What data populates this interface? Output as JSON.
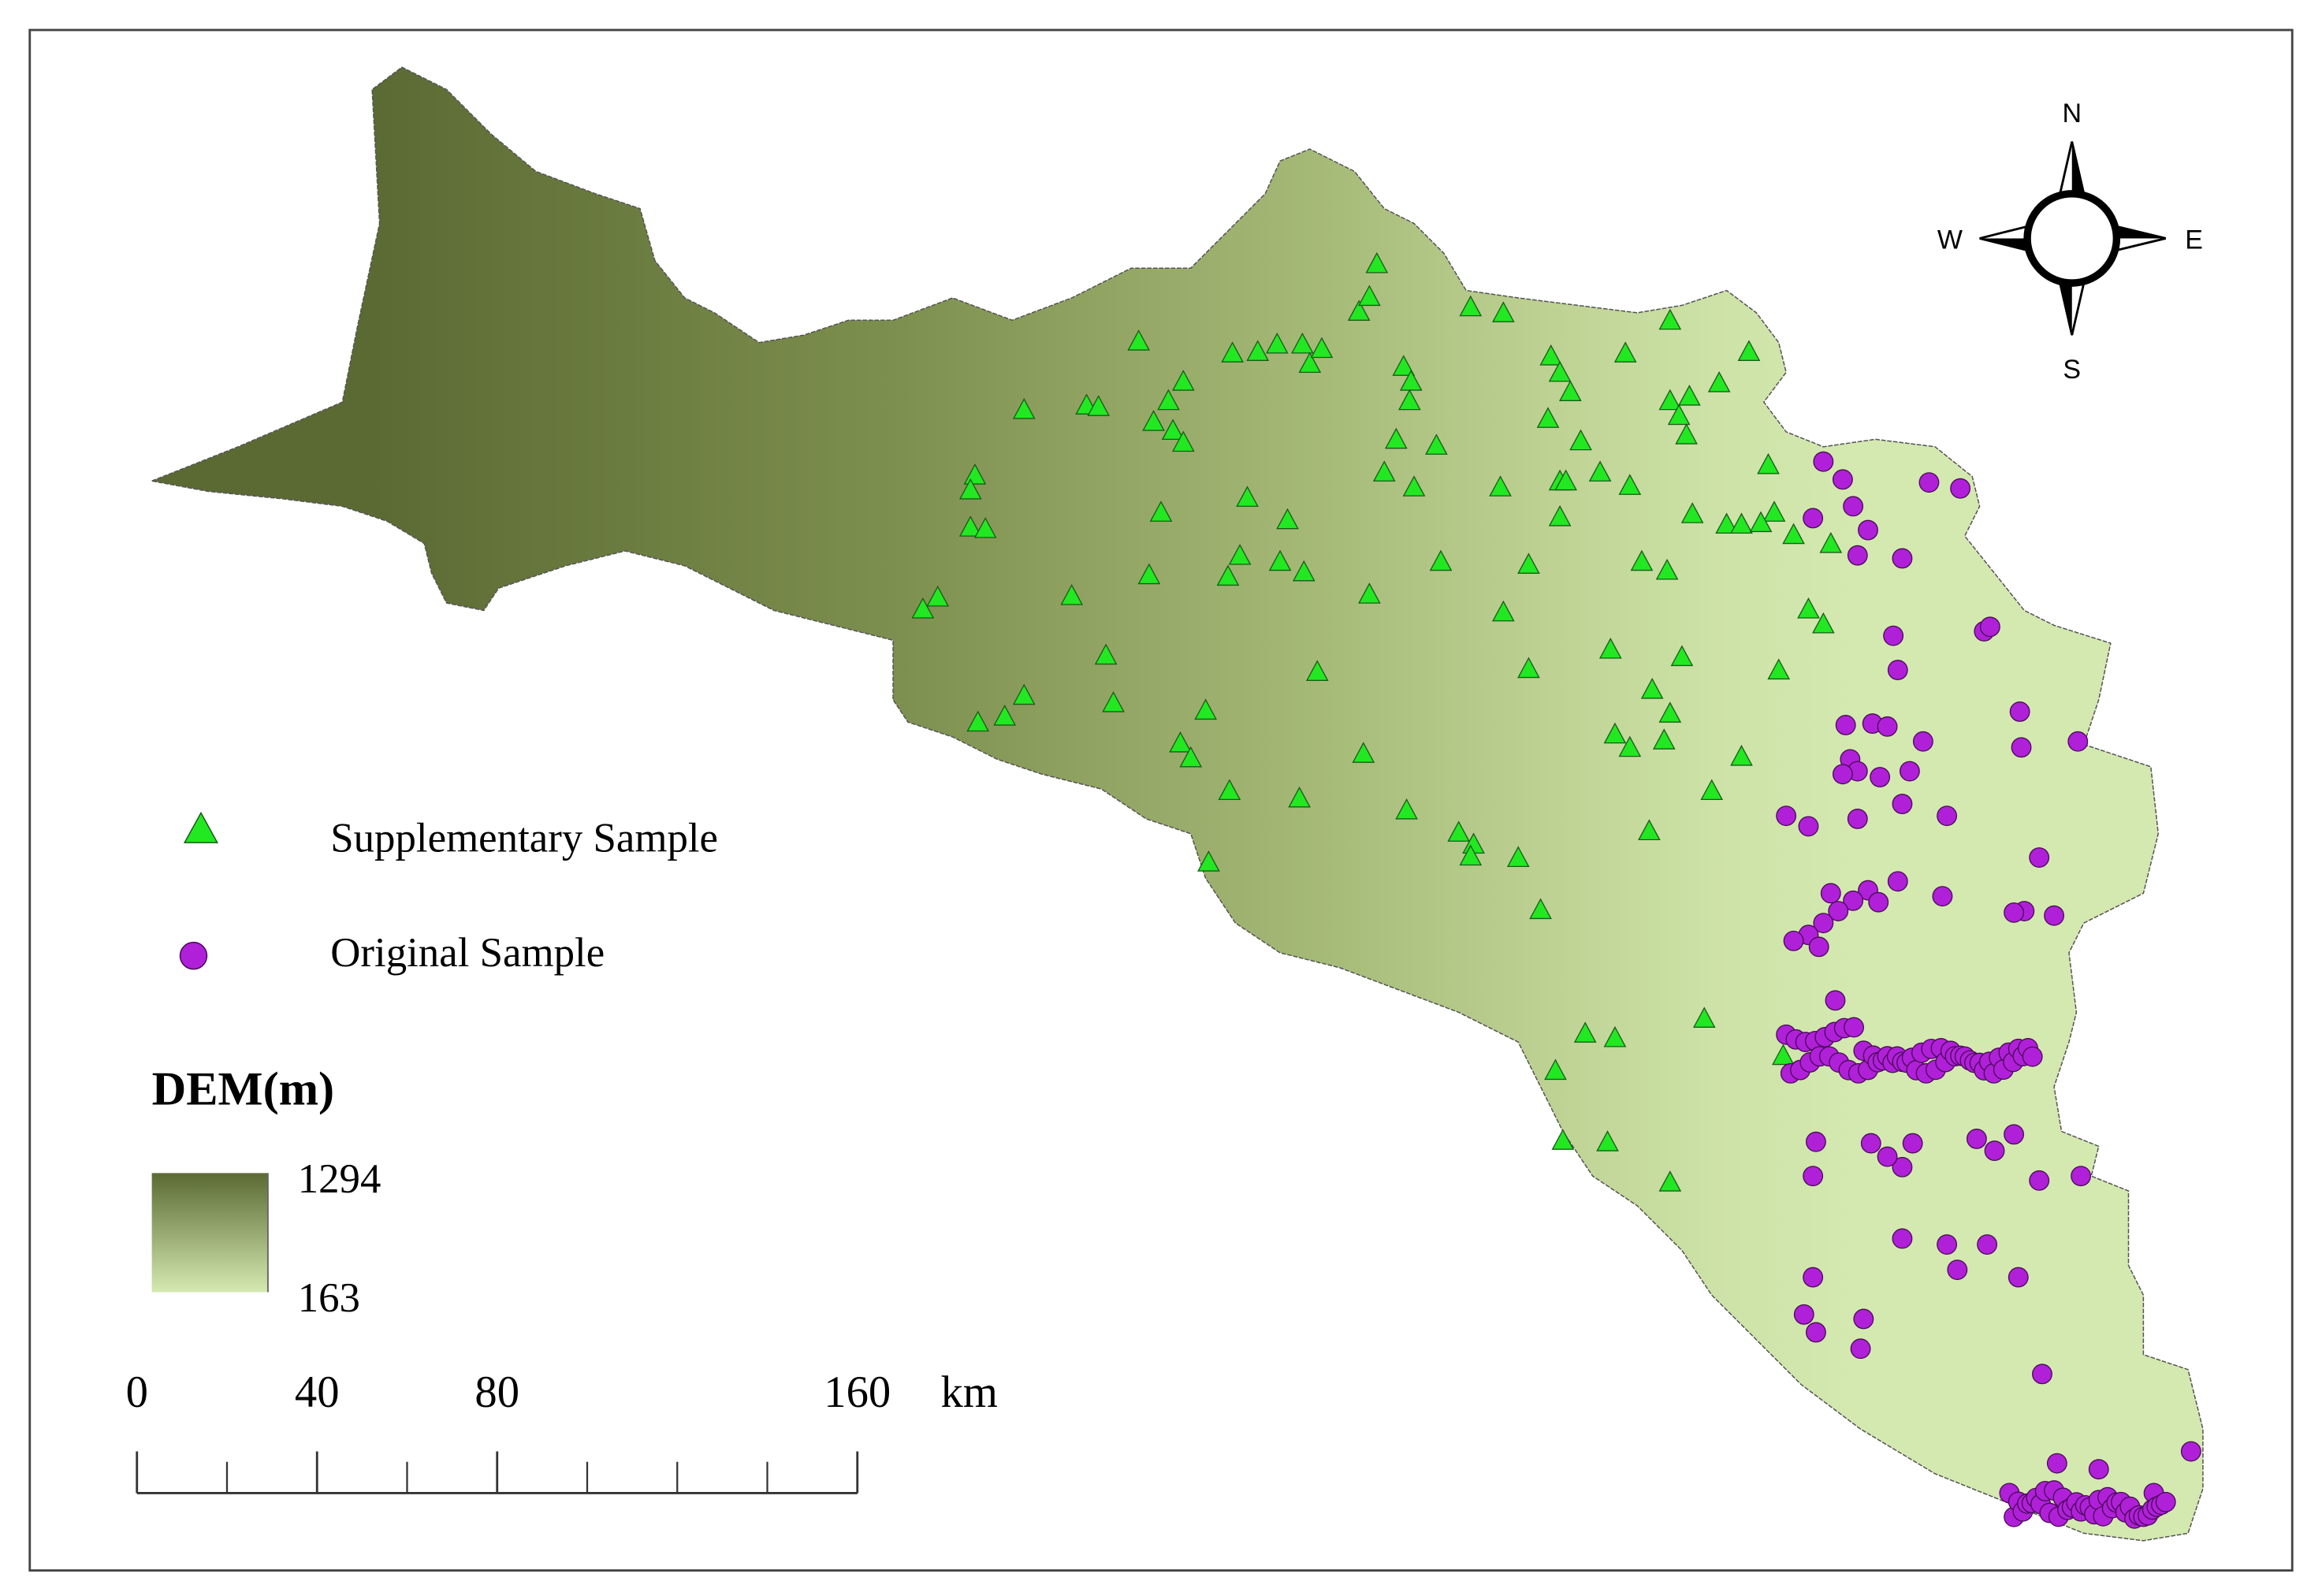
{
  "legend": {
    "supplementary": "Supplementary Sample",
    "original": "Original Sample"
  },
  "dem_legend": {
    "title": "DEM(m)",
    "max": 1294,
    "min": 163
  },
  "scale_bar": {
    "ticks": [
      0,
      40,
      80,
      160
    ],
    "unit": "km"
  },
  "compass": {
    "n": "N",
    "s": "S",
    "e": "E",
    "w": "W"
  }
}
